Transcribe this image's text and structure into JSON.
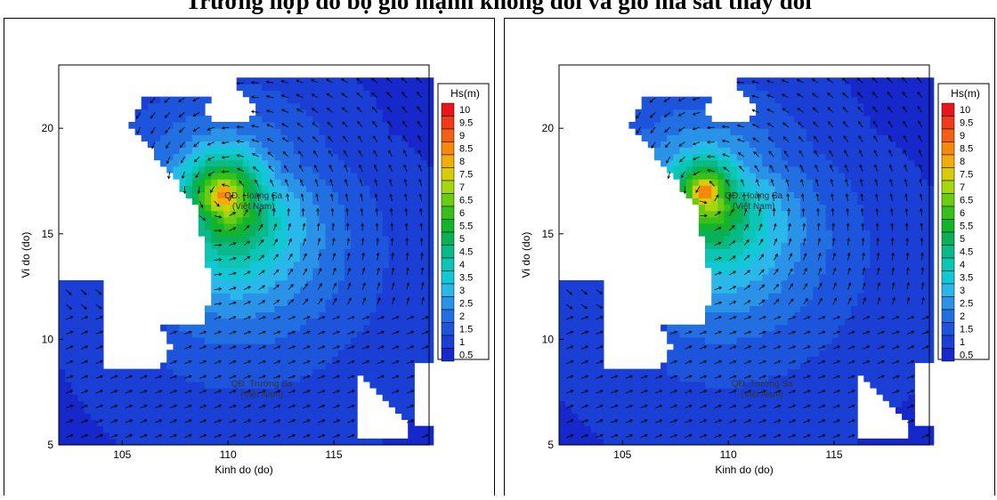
{
  "title": "Trường hợp đổ bộ gió mạnh không đổi và gió ma sát thay đổi",
  "maps": [
    {
      "id": "left",
      "eye": [
        109.8,
        16.8
      ],
      "spread": 1.0
    },
    {
      "id": "right",
      "eye": [
        108.9,
        17.0
      ],
      "spread": 0.85
    }
  ],
  "axes": {
    "xlabel": "Kinh do (do)",
    "ylabel": "Vi do (do)",
    "xticks": [
      105,
      110,
      115
    ],
    "yticks": [
      5,
      10,
      15,
      20
    ],
    "xrange": [
      102,
      119.5
    ],
    "yrange": [
      5,
      23
    ]
  },
  "labels": {
    "hoangsa_line1": "QĐ. Hoàng Sa",
    "hoangsa_line2": "(Việt Nam)",
    "truongsa_line1": "QĐ. Trường Sa",
    "truongsa_line2": "(Việt Nam)",
    "hoangsa_pos": [
      111.2,
      16.5
    ],
    "truongsa_pos": [
      111.6,
      7.6
    ]
  },
  "legend": {
    "title": "Hs(m)",
    "levels": [
      "10",
      "9.5",
      "9",
      "8.5",
      "8",
      "7.5",
      "7",
      "6.5",
      "6",
      "5.5",
      "5",
      "4.5",
      "4",
      "3.5",
      "3",
      "2.5",
      "2",
      "1.5",
      "1",
      "0.5"
    ],
    "colors": [
      "#e8161b",
      "#f03b1a",
      "#f55e15",
      "#f8870e",
      "#f3ad0a",
      "#d8cb08",
      "#a5d60f",
      "#6bcc12",
      "#37c01c",
      "#12b42c",
      "#08b158",
      "#0ab988",
      "#0cc5b3",
      "#12c7d6",
      "#2ab8ea",
      "#2a93e8",
      "#226fe2",
      "#1d54dc",
      "#1a3fd4",
      "#1628c9"
    ]
  }
}
